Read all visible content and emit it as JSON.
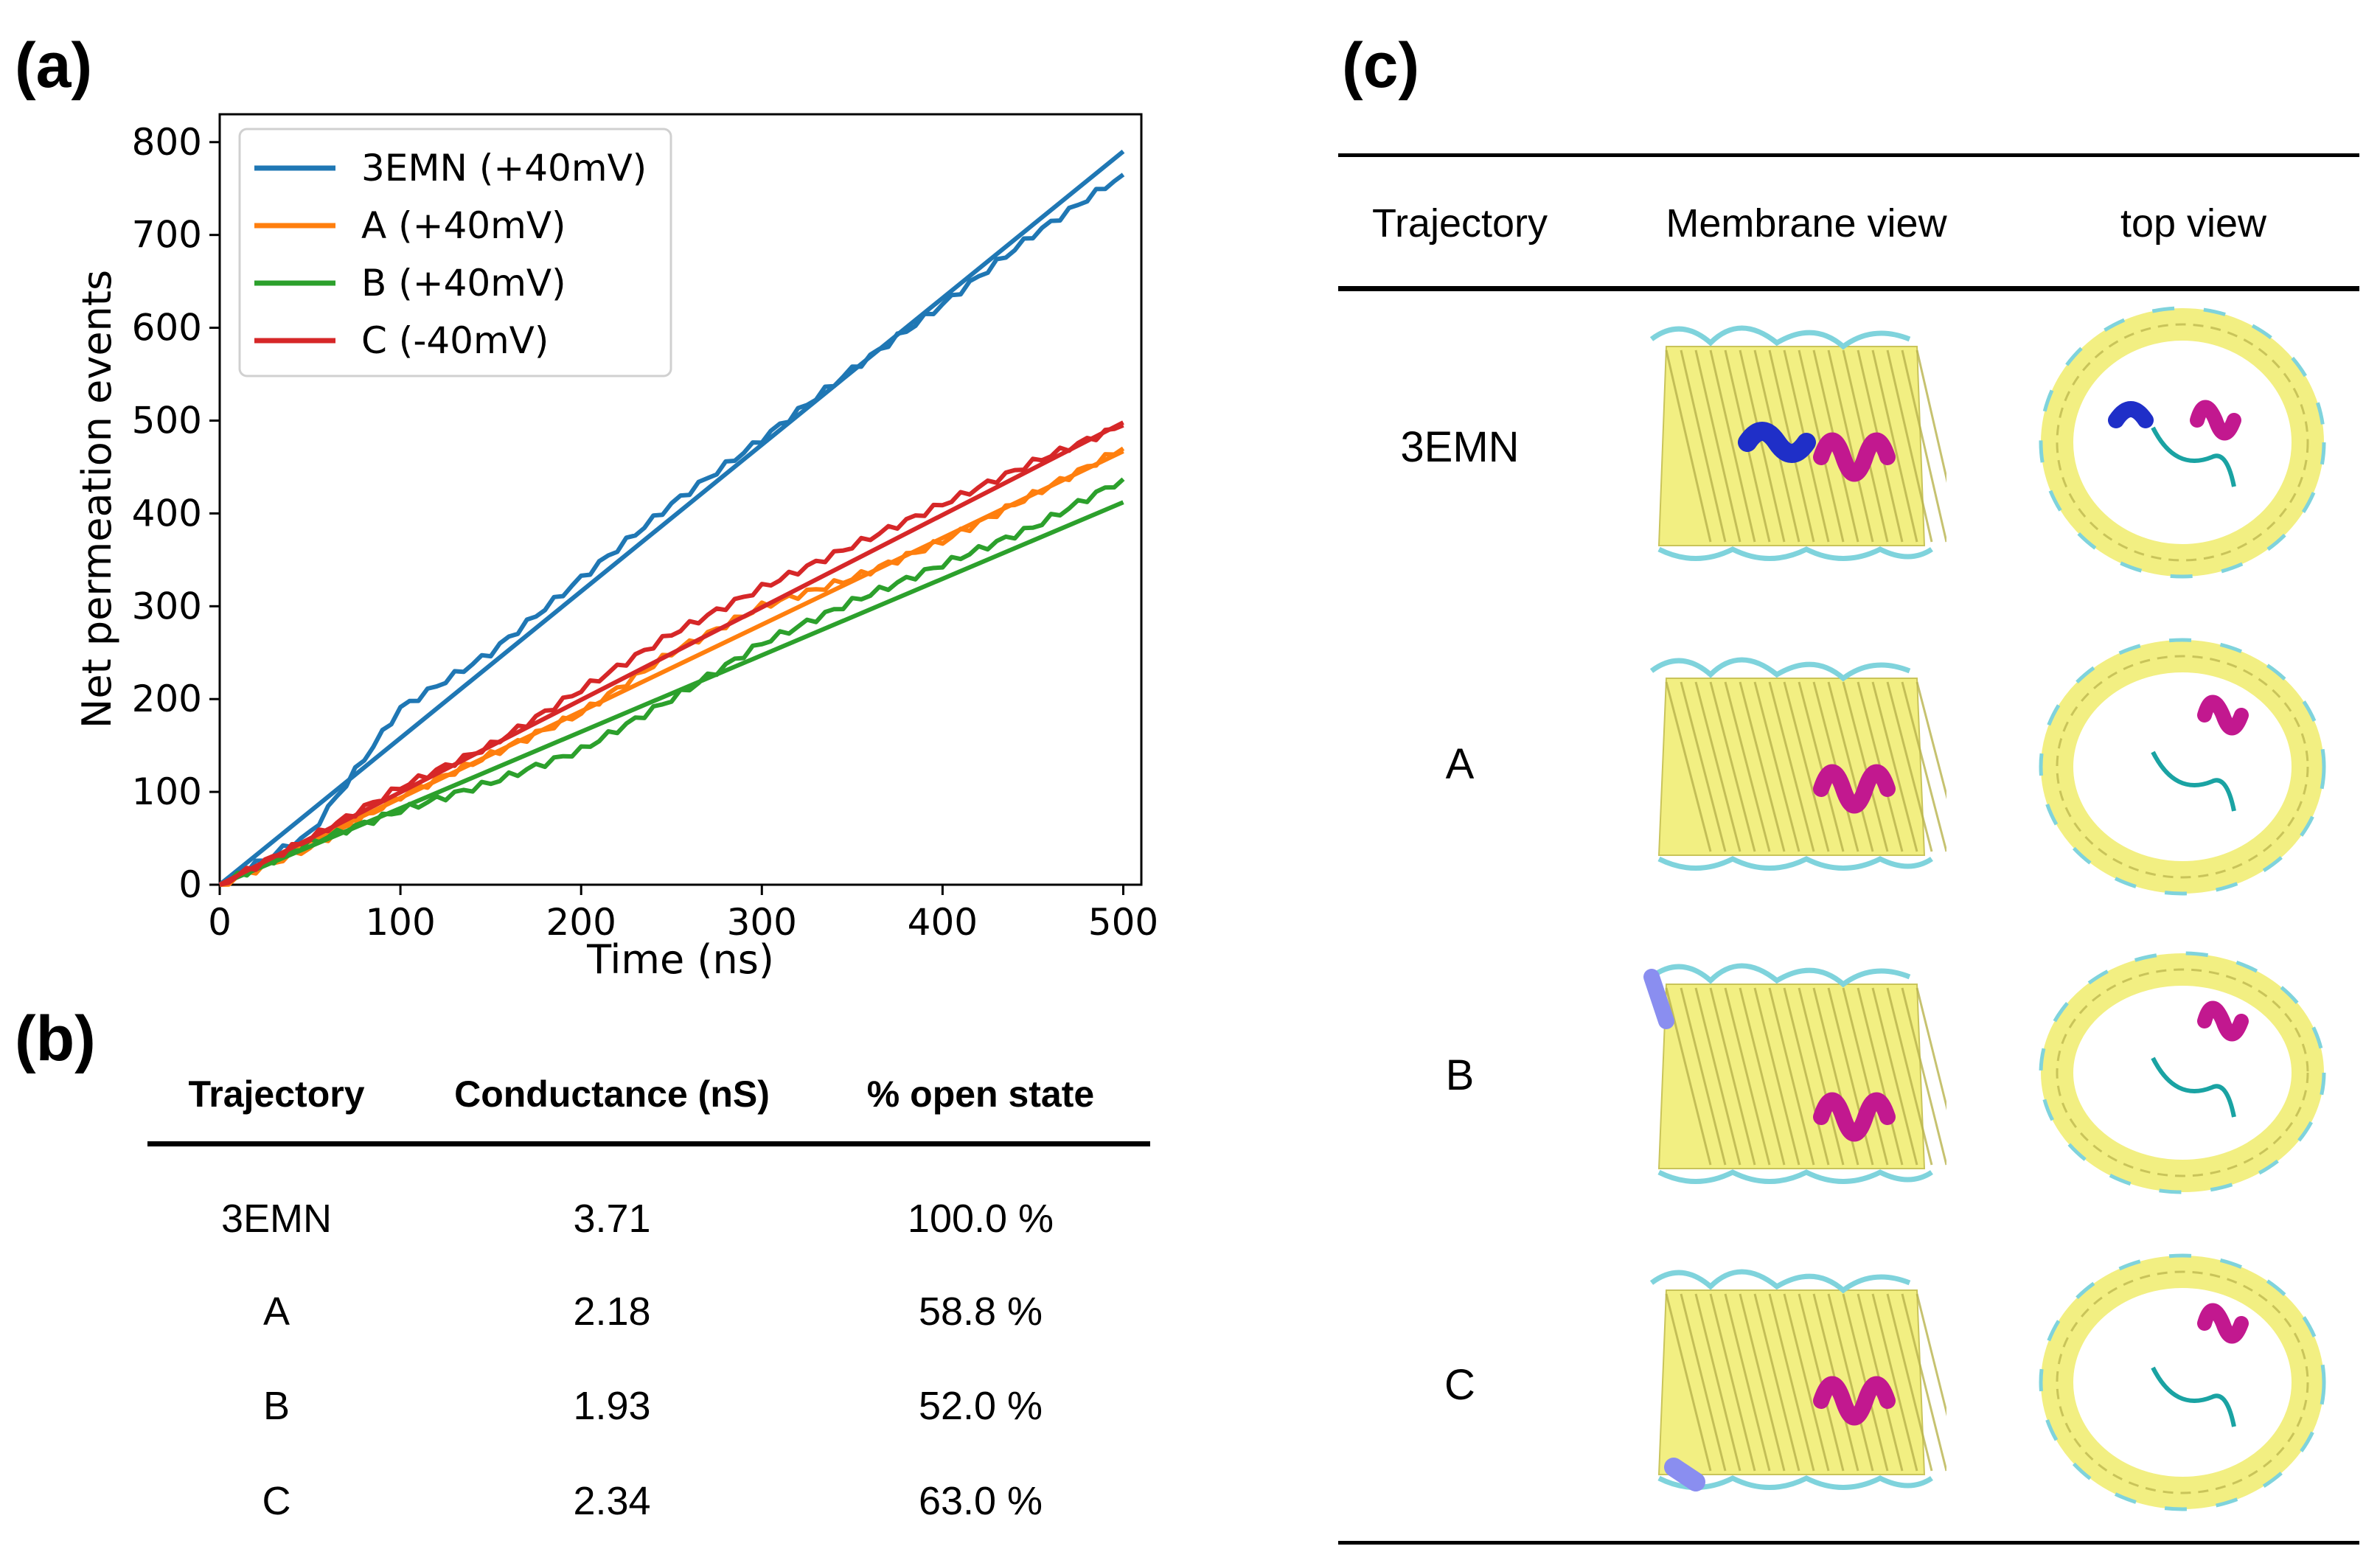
{
  "panel_labels": {
    "a": "(a)",
    "b": "(b)",
    "c": "(c)"
  },
  "chart_data": {
    "type": "line",
    "title": "",
    "xlabel": "Time (ns)",
    "ylabel": "Net permeation events",
    "xlim": [
      0,
      510
    ],
    "ylim": [
      0,
      830
    ],
    "xticks": [
      0,
      100,
      200,
      300,
      400,
      500
    ],
    "yticks": [
      0,
      100,
      200,
      300,
      400,
      500,
      600,
      700,
      800
    ],
    "legend_position": "top-left",
    "series": [
      {
        "name": "3EMN (+40mV)",
        "color": "#1f77b4",
        "fit_end": 790,
        "x": [
          0,
          50,
          100,
          150,
          200,
          250,
          300,
          350,
          400,
          450,
          500
        ],
        "y": [
          0,
          55,
          190,
          250,
          330,
          410,
          480,
          555,
          625,
          700,
          765
        ]
      },
      {
        "name": "A (+40mV)",
        "color": "#ff7f0e",
        "fit_end": 467,
        "x": [
          0,
          50,
          100,
          150,
          200,
          250,
          300,
          350,
          400,
          450,
          500
        ],
        "y": [
          0,
          40,
          95,
          140,
          185,
          250,
          300,
          330,
          370,
          420,
          470
        ]
      },
      {
        "name": "B (+40mV)",
        "color": "#2ca02c",
        "fit_end": 412,
        "x": [
          0,
          50,
          100,
          150,
          200,
          250,
          300,
          350,
          400,
          450,
          500
        ],
        "y": [
          0,
          45,
          80,
          110,
          145,
          200,
          260,
          305,
          345,
          385,
          437
        ]
      },
      {
        "name": "C (-40mV)",
        "color": "#d62728",
        "fit_end": 498,
        "x": [
          0,
          50,
          100,
          150,
          200,
          250,
          300,
          350,
          400,
          450,
          500
        ],
        "y": [
          0,
          50,
          105,
          150,
          210,
          270,
          320,
          365,
          410,
          455,
          495
        ]
      }
    ]
  },
  "table_b": {
    "headers": [
      "Trajectory",
      "Conductance (nS)",
      "% open state"
    ],
    "rows": [
      [
        "3EMN",
        "3.71",
        "100.0 %"
      ],
      [
        "A",
        "2.18",
        "58.8 %"
      ],
      [
        "B",
        "1.93",
        "52.0 %"
      ],
      [
        "C",
        "2.34",
        "63.0 %"
      ]
    ]
  },
  "table_c": {
    "headers": [
      "Trajectory",
      "Membrane view",
      "top view"
    ],
    "rows": [
      "3EMN",
      "A",
      "B",
      "C"
    ]
  },
  "colors": {
    "barrel": "#f2ef82",
    "loop": "#7fd3dc",
    "helix": "#c2188f",
    "blue_segment": "#1f2fc8"
  }
}
